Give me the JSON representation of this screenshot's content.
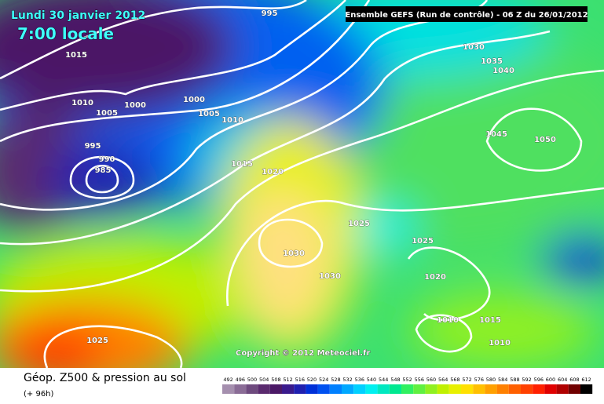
{
  "header": {
    "date": "Lundi 30 janvier 2012",
    "time": "7:00 locale",
    "run": "Ensemble GEFS (Run de contrôle)  -  06 Z du 26/01/2012"
  },
  "map": {
    "isobar_labels": [
      "995",
      "1015",
      "1010",
      "1005",
      "1000",
      "1000",
      "1005",
      "1010",
      "995",
      "990",
      "985",
      "1015",
      "1020",
      "1030",
      "1035",
      "1040",
      "1045",
      "1050",
      "1025",
      "1025",
      "1030",
      "1030",
      "1020",
      "1010",
      "1015",
      "1010",
      "1025"
    ],
    "copyright": "Copyright © 2012 Meteociel.fr"
  },
  "footer": {
    "title": "Géop. Z500 & pression au sol",
    "lead": "(+ 96h)",
    "legend": {
      "values": [
        492,
        496,
        500,
        504,
        508,
        512,
        516,
        520,
        524,
        528,
        532,
        536,
        540,
        544,
        548,
        552,
        556,
        560,
        564,
        568,
        572,
        576,
        580,
        584,
        588,
        592,
        596,
        600,
        604,
        608,
        612
      ],
      "colors": [
        "#a58fae",
        "#8a6c96",
        "#6e4a7e",
        "#5a2a6e",
        "#4b1866",
        "#3a1a8c",
        "#2020b0",
        "#0030d8",
        "#0050f0",
        "#0080ff",
        "#00a8ff",
        "#00d0ff",
        "#00f0f0",
        "#00e8c0",
        "#00e890",
        "#30f060",
        "#60f040",
        "#90f020",
        "#c0f000",
        "#e8f000",
        "#ffe000",
        "#ffc000",
        "#ffa000",
        "#ff8000",
        "#ff6000",
        "#ff4000",
        "#ff2000",
        "#e00000",
        "#b00000",
        "#700000",
        "#000000"
      ]
    }
  }
}
